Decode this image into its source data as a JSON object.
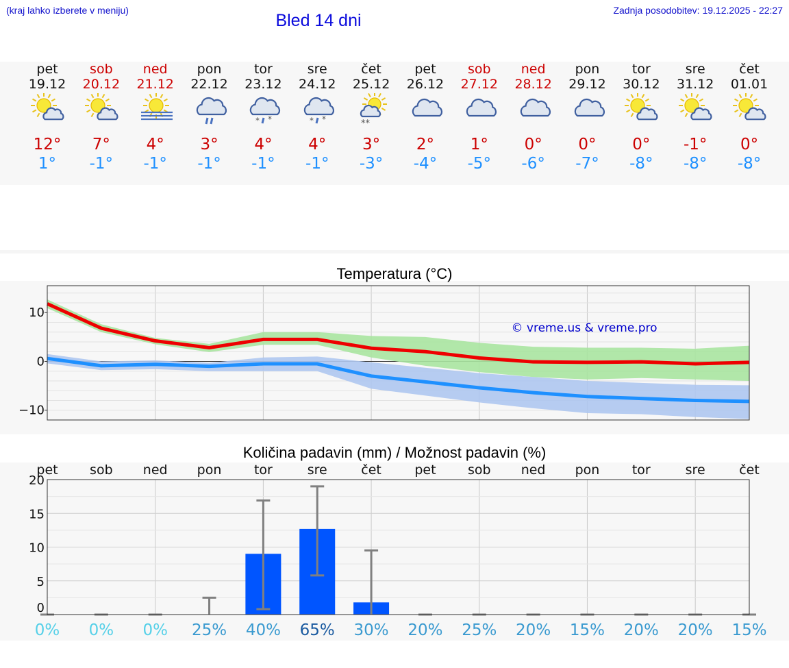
{
  "header": {
    "left_note": "(kraj lahko izberete v meniju)",
    "title": "Bled 14 dni",
    "updated": "Zadnja posodobitev: 19.12.2025 - 22:27"
  },
  "days": [
    {
      "name": "pet",
      "date": "19.12",
      "weekend": false,
      "icon": "sun-cloud-icon",
      "max": "12°",
      "min": "1°"
    },
    {
      "name": "sob",
      "date": "20.12",
      "weekend": true,
      "icon": "sun-cloud-icon",
      "max": "7°",
      "min": "-1°"
    },
    {
      "name": "ned",
      "date": "21.12",
      "weekend": true,
      "icon": "sun-fog-icon",
      "max": "4°",
      "min": "-1°"
    },
    {
      "name": "pon",
      "date": "22.12",
      "weekend": false,
      "icon": "rain-cloud-icon",
      "max": "3°",
      "min": "-1°"
    },
    {
      "name": "tor",
      "date": "23.12",
      "weekend": false,
      "icon": "sleet-cloud-icon",
      "max": "4°",
      "min": "-1°"
    },
    {
      "name": "sre",
      "date": "24.12",
      "weekend": false,
      "icon": "sleet-cloud-icon",
      "max": "4°",
      "min": "-1°"
    },
    {
      "name": "čet",
      "date": "25.12",
      "weekend": false,
      "icon": "sun-snow-cloud-icon",
      "max": "3°",
      "min": "-3°"
    },
    {
      "name": "pet",
      "date": "26.12",
      "weekend": false,
      "icon": "cloud-icon",
      "max": "2°",
      "min": "-4°"
    },
    {
      "name": "sob",
      "date": "27.12",
      "weekend": true,
      "icon": "cloud-icon",
      "max": "1°",
      "min": "-5°"
    },
    {
      "name": "ned",
      "date": "28.12",
      "weekend": true,
      "icon": "cloud-icon",
      "max": "0°",
      "min": "-6°"
    },
    {
      "name": "pon",
      "date": "29.12",
      "weekend": false,
      "icon": "cloud-icon",
      "max": "0°",
      "min": "-7°"
    },
    {
      "name": "tor",
      "date": "30.12",
      "weekend": false,
      "icon": "sun-cloud-icon",
      "max": "0°",
      "min": "-8°"
    },
    {
      "name": "sre",
      "date": "31.12",
      "weekend": false,
      "icon": "sun-cloud-icon",
      "max": "-1°",
      "min": "-8°"
    },
    {
      "name": "čet",
      "date": "01.01",
      "weekend": false,
      "icon": "sun-cloud-icon",
      "max": "0°",
      "min": "-8°"
    }
  ],
  "colors": {
    "max_line": "#ee0000",
    "min_line": "#1e90ff",
    "max_band": "#a8e4a0",
    "min_band": "#aec6f0",
    "bar": "#0055ff",
    "whisker": "#808080",
    "watermark": "#0000cc"
  },
  "chart_data": [
    {
      "type": "line",
      "title": "Temperatura (°C)",
      "watermark": "© vreme.us & vreme.pro",
      "x": [
        0,
        1,
        2,
        3,
        4,
        5,
        6,
        7,
        8,
        9,
        10,
        11,
        12,
        13
      ],
      "ylim": [
        -12,
        15.5
      ],
      "yticks": [
        10,
        0,
        -10
      ],
      "ytick_labels": [
        "10",
        "0",
        "−10"
      ],
      "series": [
        {
          "name": "max",
          "values": [
            11.8,
            6.8,
            4.2,
            2.8,
            4.5,
            4.5,
            2.7,
            2.0,
            0.7,
            -0.1,
            -0.2,
            -0.1,
            -0.5,
            -0.2
          ],
          "band_low": [
            10.9,
            6.0,
            3.5,
            1.9,
            3.4,
            3.4,
            0.8,
            -0.9,
            -2.2,
            -3.2,
            -3.7,
            -3.4,
            -3.7,
            -4.0
          ],
          "band_high": [
            12.7,
            7.6,
            4.8,
            3.6,
            6.0,
            6.0,
            5.2,
            5.0,
            3.8,
            3.0,
            2.8,
            2.8,
            2.6,
            3.2
          ]
        },
        {
          "name": "min",
          "values": [
            0.6,
            -0.9,
            -0.6,
            -1.0,
            -0.5,
            -0.5,
            -3.0,
            -4.2,
            -5.4,
            -6.4,
            -7.2,
            -7.6,
            -8.0,
            -8.2
          ],
          "band_low": [
            -0.4,
            -1.8,
            -1.6,
            -2.0,
            -2.0,
            -2.0,
            -5.6,
            -7.0,
            -8.4,
            -9.6,
            -10.6,
            -10.8,
            -11.4,
            -11.8
          ],
          "band_high": [
            1.5,
            0.0,
            0.2,
            -0.3,
            0.8,
            1.0,
            -0.2,
            -1.3,
            -2.4,
            -3.2,
            -4.0,
            -4.4,
            -4.8,
            -4.9
          ]
        }
      ]
    },
    {
      "type": "bar",
      "title": "Količina padavin (mm) / Možnost padavin (%)",
      "categories": [
        "pet",
        "sob",
        "ned",
        "pon",
        "tor",
        "sre",
        "čet",
        "pet",
        "sob",
        "ned",
        "pon",
        "tor",
        "sre",
        "čet"
      ],
      "values": [
        0,
        0,
        0,
        0,
        9.0,
        12.7,
        1.8,
        0,
        0,
        0,
        0,
        0,
        0,
        0
      ],
      "err_low": [
        0,
        0,
        0,
        0,
        0.8,
        5.8,
        0,
        0,
        0,
        0,
        0,
        0,
        0,
        0
      ],
      "err_high": [
        0,
        0,
        0,
        2.5,
        16.9,
        19.0,
        9.5,
        0,
        0,
        0,
        0,
        0,
        0,
        0
      ],
      "ylim": [
        0,
        20
      ],
      "yticks": [
        20,
        15,
        10,
        5,
        0
      ],
      "probability": [
        "0%",
        "0%",
        "0%",
        "25%",
        "40%",
        "65%",
        "30%",
        "20%",
        "25%",
        "20%",
        "15%",
        "20%",
        "20%",
        "15%"
      ],
      "probability_colors": [
        "#55d0e8",
        "#55d0e8",
        "#55d0e8",
        "#3a9ad0",
        "#3a9ad0",
        "#1a5aa0",
        "#3a9ad0",
        "#3a9ad0",
        "#3a9ad0",
        "#3a9ad0",
        "#3a9ad0",
        "#3a9ad0",
        "#3a9ad0",
        "#3a9ad0"
      ]
    }
  ]
}
